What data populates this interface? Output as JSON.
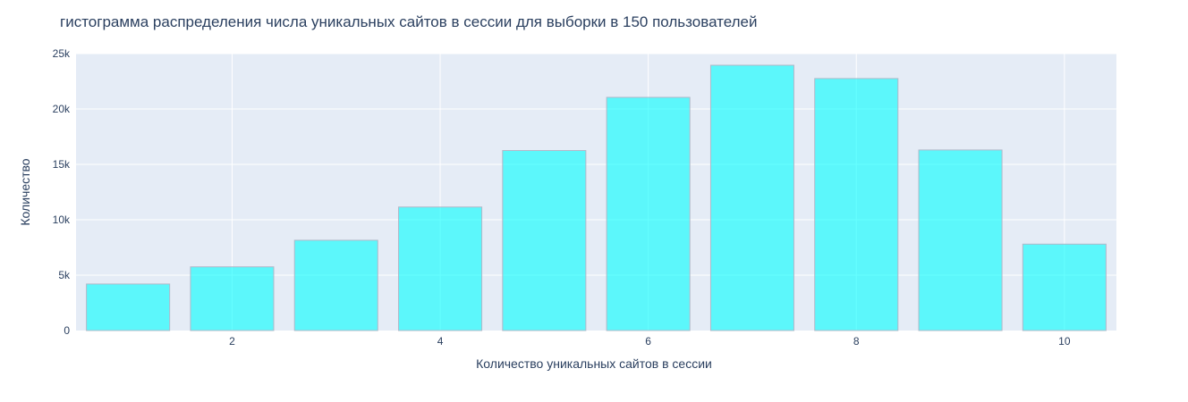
{
  "colors": {
    "plot_background": "#E5ECF6",
    "gridline": "#ffffff",
    "bar_fill": "#00FFFF",
    "bar_fill_opacity": "0.6",
    "bar_stroke": "#B0B8C8",
    "text": "#2a3f5f"
  },
  "chart_data": {
    "type": "bar",
    "title": "гистограмма распределения числа уникальных сайтов в сессии для выборки в 150 пользователей",
    "xlabel": "Количество уникальных сайтов в сессии",
    "ylabel": "Количество",
    "x": [
      1,
      2,
      3,
      4,
      5,
      6,
      7,
      8,
      9,
      10
    ],
    "values": [
      4200,
      5750,
      8150,
      11150,
      16250,
      21050,
      23950,
      22750,
      16300,
      7800
    ],
    "xlim": [
      0.5,
      10.5
    ],
    "ylim": [
      0,
      25000
    ],
    "xticks": [
      2,
      4,
      6,
      8,
      10
    ],
    "xtick_labels": [
      "2",
      "4",
      "6",
      "8",
      "10"
    ],
    "yticks": [
      0,
      5000,
      10000,
      15000,
      20000,
      25000
    ],
    "ytick_labels": [
      "0",
      "5k",
      "10k",
      "15k",
      "20k",
      "25k"
    ],
    "grid": true,
    "legend": "none"
  }
}
